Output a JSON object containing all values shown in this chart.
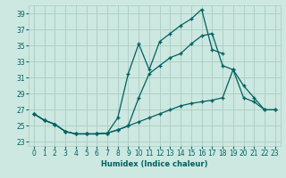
{
  "xlabel": "Humidex (Indice chaleur)",
  "line1_x": [
    0,
    1,
    2,
    3,
    4,
    5,
    6,
    7,
    8,
    9,
    10,
    11,
    12,
    13,
    14,
    15,
    16,
    17,
    18
  ],
  "line1_y": [
    26.5,
    25.7,
    25.2,
    24.3,
    24.0,
    24.0,
    24.0,
    24.1,
    26.0,
    31.5,
    35.2,
    32.0,
    35.5,
    36.5,
    37.5,
    38.3,
    39.5,
    34.5,
    34.0
  ],
  "line2_x": [
    0,
    1,
    2,
    3,
    4,
    5,
    6,
    7,
    8,
    9,
    10,
    11,
    12,
    13,
    14,
    15,
    16,
    17,
    18,
    19,
    20,
    21,
    22,
    23
  ],
  "line2_y": [
    26.5,
    25.7,
    25.2,
    24.3,
    24.0,
    24.0,
    24.0,
    24.1,
    24.5,
    25.0,
    28.5,
    31.5,
    32.5,
    33.5,
    34.0,
    35.2,
    36.2,
    36.5,
    32.5,
    32.0,
    30.0,
    28.5,
    27.0,
    27.0
  ],
  "line3_x": [
    0,
    1,
    2,
    3,
    4,
    5,
    6,
    7,
    8,
    9,
    10,
    11,
    12,
    13,
    14,
    15,
    16,
    17,
    18,
    19,
    20,
    21,
    22,
    23
  ],
  "line3_y": [
    26.5,
    25.7,
    25.2,
    24.3,
    24.0,
    24.0,
    24.0,
    24.1,
    24.5,
    25.0,
    25.5,
    26.0,
    26.5,
    27.0,
    27.5,
    27.8,
    28.0,
    28.2,
    28.5,
    32.0,
    28.5,
    28.0,
    27.0,
    27.0
  ],
  "bg_color": "#cce8e0",
  "grid_color": "#aaccc4",
  "line_color": "#006060",
  "yticks": [
    23,
    25,
    27,
    29,
    31,
    33,
    35,
    37,
    39
  ],
  "ylim": [
    22.5,
    40.0
  ],
  "xlim": [
    -0.5,
    23.5
  ]
}
